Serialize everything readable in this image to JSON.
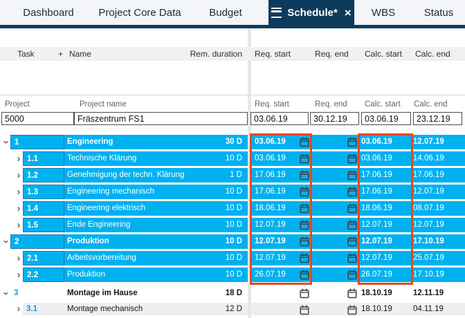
{
  "colors": {
    "highlight_row": "#00b1f0",
    "active_tab_navy": "#0e3a5c",
    "attention_box_red": "#e2491f",
    "task_cell_border": "#2577ad",
    "task_number_blue": "#1a9ad6"
  },
  "tabs": {
    "items": [
      {
        "label": "Dashboard",
        "active": false
      },
      {
        "label": "Project Core Data",
        "active": false
      },
      {
        "label": "Budget",
        "active": false
      },
      {
        "label": "Schedule*",
        "active": true
      },
      {
        "label": "WBS",
        "active": false
      },
      {
        "label": "Status",
        "active": false
      }
    ]
  },
  "grid_header": {
    "task": "Task",
    "add": "+",
    "name": "Name",
    "rem_duration": "Rem. duration",
    "req_start": "Req. start",
    "req_end": "Req. end",
    "calc_start": "Calc. start",
    "calc_end": "Calc. end"
  },
  "project_section": {
    "labels": {
      "project": "Project",
      "project_name": "Project name",
      "req_start": "Req. start",
      "req_end": "Req. end",
      "calc_start": "Calc. start",
      "calc_end": "Calc. end"
    },
    "values": {
      "project": "5000",
      "project_name": "Fräszentrum FS1",
      "req_start": "03.06.19",
      "req_end": "30.12.19",
      "calc_start": "03.06.19",
      "calc_end": "23.12.19"
    }
  },
  "rows": [
    {
      "task": "1",
      "level": 1,
      "expanded": true,
      "name": "Engineering",
      "duration": "30 D",
      "req_start": "03.06.19",
      "req_end": "",
      "calc_start": "03.06.19",
      "calc_end": "12.07.19",
      "summary": true,
      "style": "hl"
    },
    {
      "task": "1.1",
      "level": 2,
      "expanded": false,
      "name": "Technische Klärung",
      "duration": "10 D",
      "req_start": "03.06.19",
      "req_end": "",
      "calc_start": "03.06.19",
      "calc_end": "14.06.19",
      "summary": false,
      "style": "hl"
    },
    {
      "task": "1.2",
      "level": 2,
      "expanded": false,
      "name": "Genehmigung der techn. Klärung",
      "duration": "1 D",
      "req_start": "17.06.19",
      "req_end": "",
      "calc_start": "17.06.19",
      "calc_end": "17.06.19",
      "summary": false,
      "style": "hl"
    },
    {
      "task": "1.3",
      "level": 2,
      "expanded": false,
      "name": "Engineering mechanisch",
      "duration": "10 D",
      "req_start": "17.06.19",
      "req_end": "",
      "calc_start": "17.06.19",
      "calc_end": "12.07.19",
      "summary": false,
      "style": "hl"
    },
    {
      "task": "1.4",
      "level": 2,
      "expanded": false,
      "name": "Engineering elektrisch",
      "duration": "10 D",
      "req_start": "18.06.19",
      "req_end": "",
      "calc_start": "18.06.19",
      "calc_end": "08.07.19",
      "summary": false,
      "style": "hl"
    },
    {
      "task": "1.5",
      "level": 2,
      "expanded": false,
      "name": "Ende Engineering",
      "duration": "10 D",
      "req_start": "12.07.19",
      "req_end": "",
      "calc_start": "12.07.19",
      "calc_end": "12.07.19",
      "summary": false,
      "style": "hl"
    },
    {
      "task": "2",
      "level": 1,
      "expanded": true,
      "name": "Produktion",
      "duration": "10 D",
      "req_start": "12.07.19",
      "req_end": "",
      "calc_start": "12.07.19",
      "calc_end": "17.10.19",
      "summary": true,
      "style": "hl"
    },
    {
      "task": "2.1",
      "level": 2,
      "expanded": false,
      "name": "Arbeitsvorbereitung",
      "duration": "10 D",
      "req_start": "12.07.19",
      "req_end": "",
      "calc_start": "12.07.19",
      "calc_end": "25.07.19",
      "summary": false,
      "style": "hl"
    },
    {
      "task": "2.2",
      "level": 2,
      "expanded": false,
      "name": "Produktion",
      "duration": "10 D",
      "req_start": "26.07.19",
      "req_end": "",
      "calc_start": "26.07.19",
      "calc_end": "17.10.19",
      "summary": false,
      "style": "hl"
    },
    {
      "task": "3",
      "level": 1,
      "expanded": true,
      "name": "Montage im Hause",
      "duration": "18 D",
      "req_start": "",
      "req_end": "",
      "calc_start": "18.10.19",
      "calc_end": "12.11.19",
      "summary": true,
      "style": "plain"
    },
    {
      "task": "3.1",
      "level": 2,
      "expanded": false,
      "name": "Montage mechanisch",
      "duration": "12 D",
      "req_start": "",
      "req_end": "",
      "calc_start": "18.10.19",
      "calc_end": "04.11.19",
      "summary": false,
      "style": "alt"
    }
  ]
}
